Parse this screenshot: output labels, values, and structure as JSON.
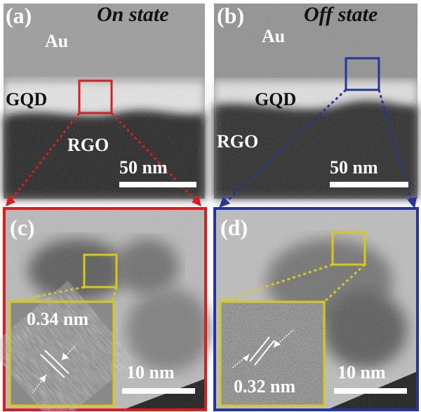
{
  "panels": {
    "a": {
      "letter": "(a)",
      "title": "On state",
      "layer_top": "Au",
      "layer_mid": "GQD",
      "layer_bottom": "RGO",
      "scale": "50 nm"
    },
    "b": {
      "letter": "(b)",
      "title": "Off state",
      "layer_top": "Au",
      "layer_mid": "GQD",
      "layer_bottom": "RGO",
      "scale": "50 nm"
    },
    "c": {
      "letter": "(c)",
      "spacing": "0.34 nm",
      "scale": "10 nm"
    },
    "d": {
      "letter": "(d)",
      "spacing": "0.32 nm",
      "scale": "10 nm"
    }
  },
  "colors": {
    "red": "#d42020",
    "blue": "#27349c",
    "yellow": "#d8c81a"
  }
}
